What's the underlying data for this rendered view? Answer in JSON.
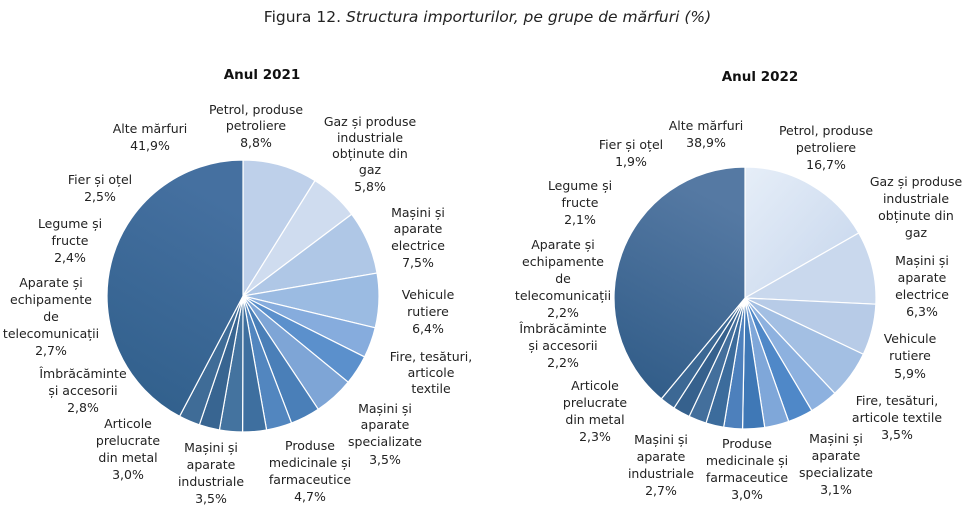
{
  "figure_title": {
    "prefix": "Figura 12.",
    "title": "Structura importurilor, pe grupe de mărfuri (%)"
  },
  "chart_data": [
    {
      "type": "pie",
      "title": "Anul 2021",
      "slices": [
        {
          "label": "Petrol, produse petroliere",
          "value": 8.8,
          "value_label": "8,8%",
          "color": "#bed0ea"
        },
        {
          "label": "Gaz și produse industriale obținute din gaz",
          "value": 5.8,
          "value_label": "5,8%",
          "color": "#cfdcef"
        },
        {
          "label": "Mașini și aparate electrice",
          "value": 7.5,
          "value_label": "7,5%",
          "color": "#afc7e6"
        },
        {
          "label": "Vehicule rutiere",
          "value": 6.4,
          "value_label": "6,4%",
          "color": "#9bbbe2"
        },
        {
          "label": "Fire, tesături, articole textile",
          "value": 3.6,
          "value_label": "",
          "color": "#86acdd"
        },
        {
          "label": "Mașini și aparate specializate",
          "value": 3.5,
          "value_label": "3,5%",
          "color": "#5b90cc"
        },
        {
          "label": "Produse medicinale și farmaceutice",
          "value": 4.7,
          "value_label": "4,7%",
          "color": "#7ea5d6"
        },
        {
          "label": "Mașini și aparate industriale",
          "value": 3.5,
          "value_label": "3,5%",
          "color": "#4a7fb8"
        },
        {
          "label": "Articole prelucrate din metal",
          "value": 3.0,
          "value_label": "3,0%",
          "color": "#5286bf"
        },
        {
          "label": "Îmbrăcăminte și accesorii",
          "value": 2.8,
          "value_label": "2,8%",
          "color": "#3e6f9f"
        },
        {
          "label": "Aparate și echipamente de telecomunicații",
          "value": 2.7,
          "value_label": "2,7%",
          "color": "#44739f"
        },
        {
          "label": "Legume și fructe",
          "value": 2.4,
          "value_label": "2,4%",
          "color": "#386591"
        },
        {
          "label": "Fier și oțel",
          "value": 2.5,
          "value_label": "2,5%",
          "color": "#3f6c97"
        },
        {
          "label": "Alte mărfuri",
          "value": 41.9,
          "value_label": "41,9%",
          "color": "#3a6691"
        }
      ]
    },
    {
      "type": "pie",
      "title": "Anul 2022",
      "slices": [
        {
          "label": "Petrol, produse petroliere",
          "value": 16.7,
          "value_label": "16,7%",
          "color": "#d9e4f2"
        },
        {
          "label": "Gaz și produse industriale obținute din gaz",
          "value": 9.0,
          "value_label": "",
          "color": "#c9d8ed"
        },
        {
          "label": "Mașini și aparate electrice",
          "value": 6.3,
          "value_label": "6,3%",
          "color": "#b7cbe7"
        },
        {
          "label": "Vehicule rutiere",
          "value": 5.9,
          "value_label": "5,9%",
          "color": "#a3bfe3"
        },
        {
          "label": "Fire, tesături, articole textile",
          "value": 3.5,
          "value_label": "3,5%",
          "color": "#8db1df"
        },
        {
          "label": "Mașini și aparate specializate",
          "value": 3.1,
          "value_label": "3,1%",
          "color": "#4f88c8"
        },
        {
          "label": "Produse medicinale și farmaceutice",
          "value": 3.0,
          "value_label": "3,0%",
          "color": "#7fa7d9"
        },
        {
          "label": "Mașini și aparate industriale",
          "value": 2.7,
          "value_label": "2,7%",
          "color": "#3f78b6"
        },
        {
          "label": "Articole prelucrate din metal",
          "value": 2.3,
          "value_label": "2,3%",
          "color": "#4d80bc"
        },
        {
          "label": "Îmbrăcăminte și accesorii",
          "value": 2.2,
          "value_label": "2,2%",
          "color": "#3c6c9c"
        },
        {
          "label": "Aparate și echipamente de telecomunicații",
          "value": 2.2,
          "value_label": "2,2%",
          "color": "#436f9c"
        },
        {
          "label": "Legume și fructe",
          "value": 2.1,
          "value_label": "2,1%",
          "color": "#36618d"
        },
        {
          "label": "Fier și oțel",
          "value": 1.9,
          "value_label": "1,9%",
          "color": "#3c6894"
        },
        {
          "label": "Alte mărfuri",
          "value": 38.9,
          "value_label": "38,9%",
          "color": "#3b6690"
        }
      ]
    }
  ]
}
